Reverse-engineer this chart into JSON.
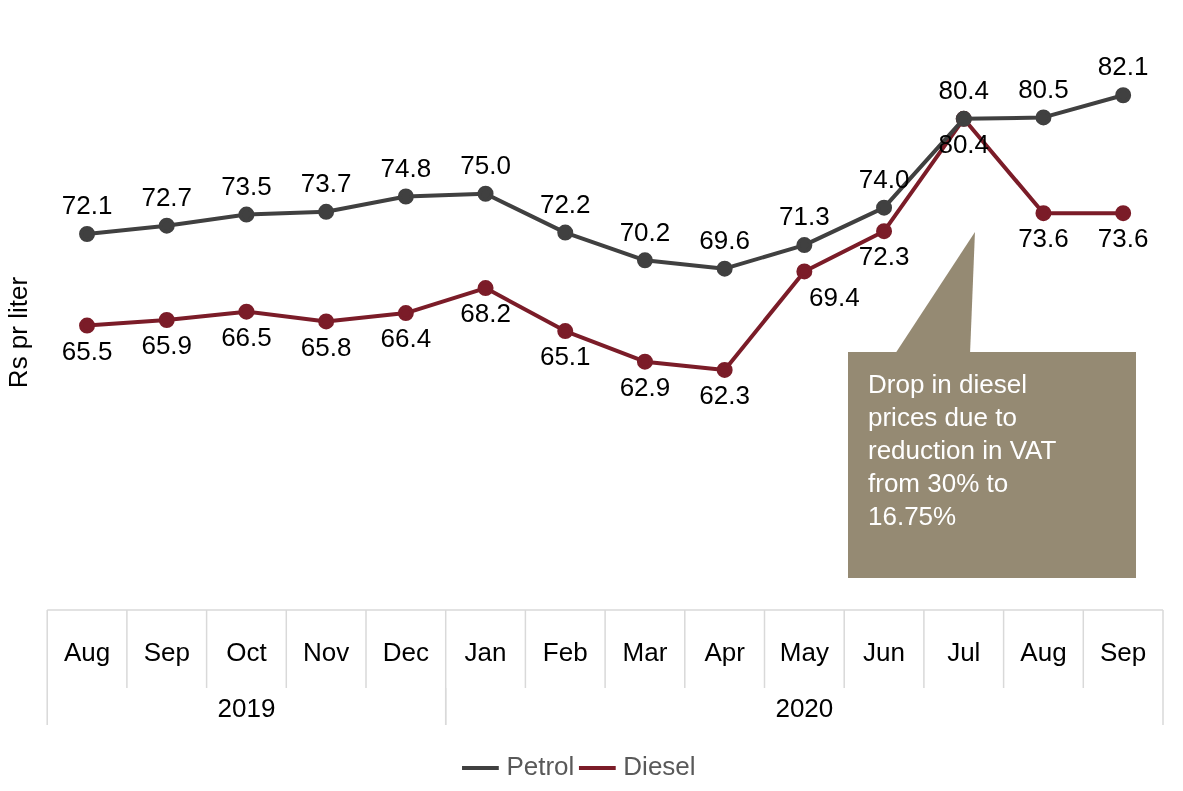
{
  "chart_data": {
    "type": "line",
    "ylabel": "Rs pr liter",
    "categories": [
      "Aug",
      "Sep",
      "Oct",
      "Nov",
      "Dec",
      "Jan",
      "Feb",
      "Mar",
      "Apr",
      "May",
      "Jun",
      "Jul",
      "Aug",
      "Sep"
    ],
    "series": [
      {
        "name": "Petrol",
        "color": "#404040",
        "values": [
          72.1,
          72.7,
          73.5,
          73.7,
          74.8,
          75.0,
          72.2,
          70.2,
          69.6,
          71.3,
          74.0,
          80.4,
          80.5,
          82.1
        ],
        "value_labels": [
          "72.1",
          "72.7",
          "73.5",
          "73.7",
          "74.8",
          "75.0",
          "72.2",
          "70.2",
          "69.6",
          "71.3",
          "74.0",
          "80.4",
          "80.5",
          "82.1"
        ]
      },
      {
        "name": "Diesel",
        "color": "#7b1c28",
        "values": [
          65.5,
          65.9,
          66.5,
          65.8,
          66.4,
          68.2,
          65.1,
          62.9,
          62.3,
          69.4,
          72.3,
          80.4,
          73.6,
          73.6
        ],
        "value_labels": [
          "65.5",
          "65.9",
          "66.5",
          "65.8",
          "66.4",
          "68.2",
          "65.1",
          "62.9",
          "62.3",
          "69.4",
          "72.3",
          "80.4",
          "73.6",
          "73.6"
        ]
      }
    ],
    "annotations": [
      "Drop in diesel prices due to reduction in VAT from 30% to 16.75%",
      "2019",
      "2020"
    ],
    "marker": "circle",
    "line_style": "solid",
    "legend": "bottom",
    "grid": false
  }
}
